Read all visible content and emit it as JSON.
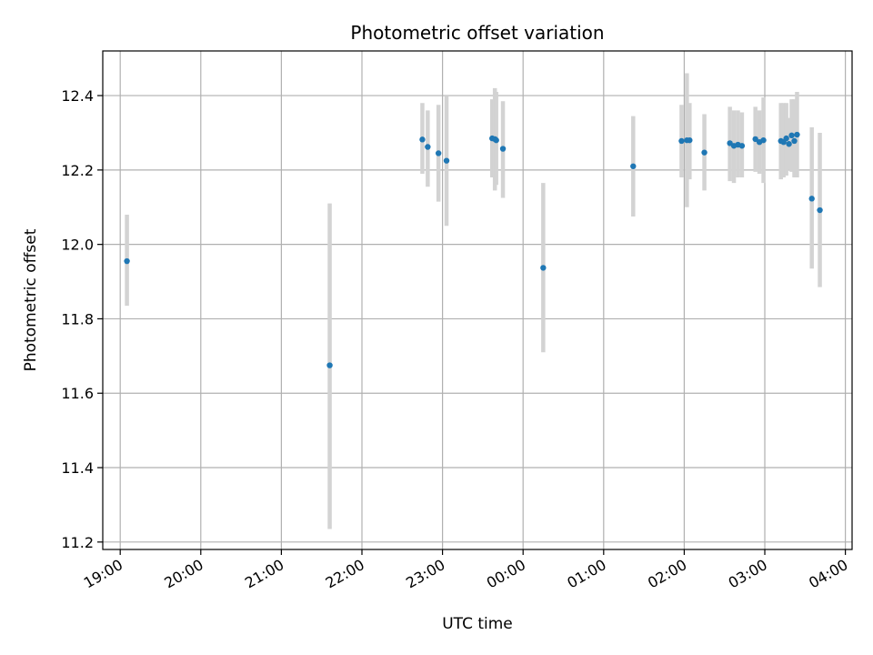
{
  "chart_data": {
    "type": "scatter",
    "title": "Photometric offset variation",
    "xlabel": "UTC time",
    "ylabel": "Photometric offset",
    "xlim": [
      "2000-01-01T18:47",
      "2000-01-02T04:05"
    ],
    "ylim": [
      11.18,
      12.52
    ],
    "grid": true,
    "x_ticks": [
      {
        "t": "2000-01-01T19:00",
        "label": "19:00"
      },
      {
        "t": "2000-01-01T20:00",
        "label": "20:00"
      },
      {
        "t": "2000-01-01T21:00",
        "label": "21:00"
      },
      {
        "t": "2000-01-01T22:00",
        "label": "22:00"
      },
      {
        "t": "2000-01-01T23:00",
        "label": "23:00"
      },
      {
        "t": "2000-01-02T00:00",
        "label": "00:00"
      },
      {
        "t": "2000-01-02T01:00",
        "label": "01:00"
      },
      {
        "t": "2000-01-02T02:00",
        "label": "02:00"
      },
      {
        "t": "2000-01-02T03:00",
        "label": "03:00"
      },
      {
        "t": "2000-01-02T04:00",
        "label": "04:00"
      }
    ],
    "y_ticks": [
      {
        "v": 11.2,
        "label": "11.2"
      },
      {
        "v": 11.4,
        "label": "11.4"
      },
      {
        "v": 11.6,
        "label": "11.6"
      },
      {
        "v": 11.8,
        "label": "11.8"
      },
      {
        "v": 12.0,
        "label": "12.0"
      },
      {
        "v": 12.2,
        "label": "12.2"
      },
      {
        "v": 12.4,
        "label": "12.4"
      }
    ],
    "marker_color": "#1f77b4",
    "errorbar_color": "#d3d3d3",
    "points": [
      {
        "t": "2000-01-01T19:05",
        "y": 11.955,
        "lo": 11.835,
        "hi": 12.08
      },
      {
        "t": "2000-01-01T21:36",
        "y": 11.675,
        "lo": 11.235,
        "hi": 12.11
      },
      {
        "t": "2000-01-01T22:45",
        "y": 12.282,
        "lo": 12.19,
        "hi": 12.38
      },
      {
        "t": "2000-01-01T22:49",
        "y": 12.262,
        "lo": 12.155,
        "hi": 12.36
      },
      {
        "t": "2000-01-01T22:57",
        "y": 12.245,
        "lo": 12.115,
        "hi": 12.375
      },
      {
        "t": "2000-01-01T23:03",
        "y": 12.225,
        "lo": 12.05,
        "hi": 12.4
      },
      {
        "t": "2000-01-01T23:37",
        "y": 12.285,
        "lo": 12.18,
        "hi": 12.39
      },
      {
        "t": "2000-01-01T23:39",
        "y": 12.283,
        "lo": 12.145,
        "hi": 12.42
      },
      {
        "t": "2000-01-01T23:40",
        "y": 12.28,
        "lo": 12.16,
        "hi": 12.41
      },
      {
        "t": "2000-01-01T23:45",
        "y": 12.257,
        "lo": 12.125,
        "hi": 12.385
      },
      {
        "t": "2000-01-02T00:15",
        "y": 11.937,
        "lo": 11.71,
        "hi": 12.165
      },
      {
        "t": "2000-01-02T01:22",
        "y": 12.21,
        "lo": 12.075,
        "hi": 12.345
      },
      {
        "t": "2000-01-02T01:58",
        "y": 12.278,
        "lo": 12.18,
        "hi": 12.375
      },
      {
        "t": "2000-01-02T02:02",
        "y": 12.28,
        "lo": 12.1,
        "hi": 12.46
      },
      {
        "t": "2000-01-02T02:04",
        "y": 12.28,
        "lo": 12.175,
        "hi": 12.38
      },
      {
        "t": "2000-01-02T02:15",
        "y": 12.247,
        "lo": 12.145,
        "hi": 12.35
      },
      {
        "t": "2000-01-02T02:34",
        "y": 12.272,
        "lo": 12.17,
        "hi": 12.37
      },
      {
        "t": "2000-01-02T02:37",
        "y": 12.265,
        "lo": 12.165,
        "hi": 12.36
      },
      {
        "t": "2000-01-02T02:40",
        "y": 12.268,
        "lo": 12.18,
        "hi": 12.36
      },
      {
        "t": "2000-01-02T02:43",
        "y": 12.265,
        "lo": 12.18,
        "hi": 12.355
      },
      {
        "t": "2000-01-02T02:53",
        "y": 12.283,
        "lo": 12.195,
        "hi": 12.37
      },
      {
        "t": "2000-01-02T02:56",
        "y": 12.275,
        "lo": 12.19,
        "hi": 12.36
      },
      {
        "t": "2000-01-02T02:59",
        "y": 12.28,
        "lo": 12.165,
        "hi": 12.395
      },
      {
        "t": "2000-01-02T03:12",
        "y": 12.278,
        "lo": 12.175,
        "hi": 12.38
      },
      {
        "t": "2000-01-02T03:14",
        "y": 12.275,
        "lo": 12.18,
        "hi": 12.38
      },
      {
        "t": "2000-01-02T03:16",
        "y": 12.285,
        "lo": 12.185,
        "hi": 12.38
      },
      {
        "t": "2000-01-02T03:18",
        "y": 12.27,
        "lo": 12.2,
        "hi": 12.34
      },
      {
        "t": "2000-01-02T03:20",
        "y": 12.293,
        "lo": 12.195,
        "hi": 12.39
      },
      {
        "t": "2000-01-02T03:22",
        "y": 12.278,
        "lo": 12.18,
        "hi": 12.39
      },
      {
        "t": "2000-01-02T03:24",
        "y": 12.295,
        "lo": 12.18,
        "hi": 12.41
      },
      {
        "t": "2000-01-02T03:35",
        "y": 12.123,
        "lo": 11.935,
        "hi": 12.315
      },
      {
        "t": "2000-01-02T03:41",
        "y": 12.092,
        "lo": 11.885,
        "hi": 12.3
      }
    ]
  }
}
